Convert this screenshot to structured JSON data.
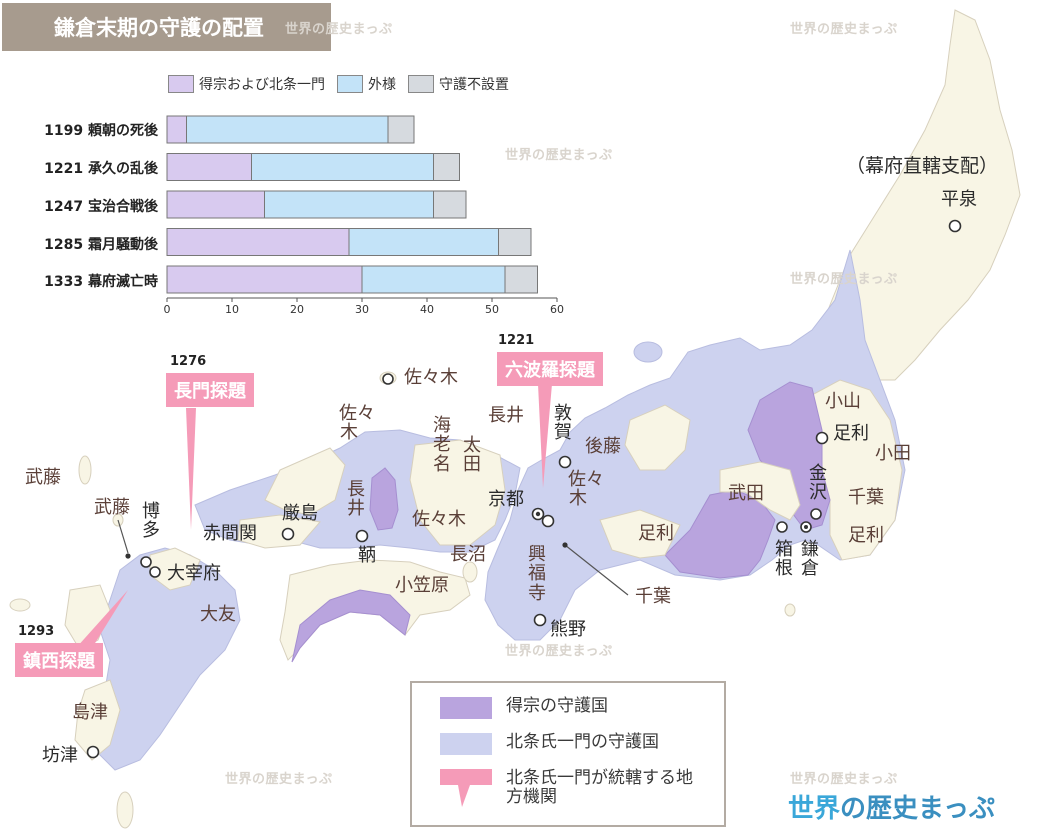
{
  "title": "鎌倉末期の守護の配置",
  "watermark": "世界の歴史まっぷ",
  "brand": {
    "part1": "世界",
    "part2": "の歴史まっぷ",
    "color1": "#3aa7d9",
    "color2": "#3a8fc0"
  },
  "colors": {
    "tokuso": "#b9a4de",
    "hojo_ichimon": "#cdd2ef",
    "other_land": "#f8f5e5",
    "gaisama": "#c3e3f8",
    "fusechi": "#d6dadf",
    "tandai_pink": "#f59bb8"
  },
  "chart_data": {
    "type": "bar",
    "stacked": true,
    "orientation": "horizontal",
    "categories": [
      "1199 頼朝の死後",
      "1221 承久の乱後",
      "1247 宝治合戦後",
      "1285 霜月騒動後",
      "1333 幕府滅亡時"
    ],
    "series": [
      {
        "name": "得宗および北条一門",
        "values": [
          3,
          13,
          15,
          28,
          30
        ]
      },
      {
        "name": "外様",
        "values": [
          31,
          28,
          26,
          23,
          22
        ]
      },
      {
        "name": "守護不設置",
        "values": [
          4,
          4,
          5,
          5,
          5
        ]
      }
    ],
    "xlim": [
      0,
      60
    ],
    "xticks": [
      0,
      10,
      20,
      30,
      40,
      50,
      60
    ],
    "legend": "top",
    "grid": false
  },
  "tandai": [
    {
      "year": "1276",
      "label": "長門探題"
    },
    {
      "year": "1221",
      "label": "六波羅探題"
    },
    {
      "year": "1293",
      "label": "鎮西探題"
    }
  ],
  "labels": {
    "bakufu_direct": "（幕府直轄支配）",
    "hiraizumi": "平泉",
    "oyama": "小山",
    "ashikaga_n": "足利",
    "oda": "小田",
    "kanazawa": "金沢",
    "chiba_e": "千葉",
    "ashikaga_e": "足利",
    "kamakura": "鎌倉",
    "hakone": "箱根",
    "takeda": "武田",
    "ashikaga_c": "足利",
    "goto": "後藤",
    "tsuruga": "敦賀",
    "nagai_n": "長井",
    "sasaki_island": "佐々木",
    "kyoto": "京都",
    "sasaki_c": "佐々木",
    "chiba_s": "千葉",
    "kofukuji": "興福寺",
    "kumano": "熊野",
    "naganuma": "長沼",
    "ogasawara": "小笠原",
    "ebina": "海老名",
    "ota": "太田",
    "sasaki_w": "佐々木",
    "nagai_w": "長井",
    "tomo": "鞆",
    "itsukushima": "厳島",
    "sasaki_s": "佐々木",
    "akamagaseki": "赤間関",
    "muto_n": "武藤",
    "muto_k": "武藤",
    "hakata": "博多",
    "dazaifu": "大宰府",
    "otomo": "大友",
    "shimazu": "島津",
    "bonotsu": "坊津"
  },
  "legend": [
    {
      "label": "得宗の守護国"
    },
    {
      "label": "北条氏一門の守護国"
    },
    {
      "label": "北条氏一門が統轄する地方機関"
    }
  ]
}
